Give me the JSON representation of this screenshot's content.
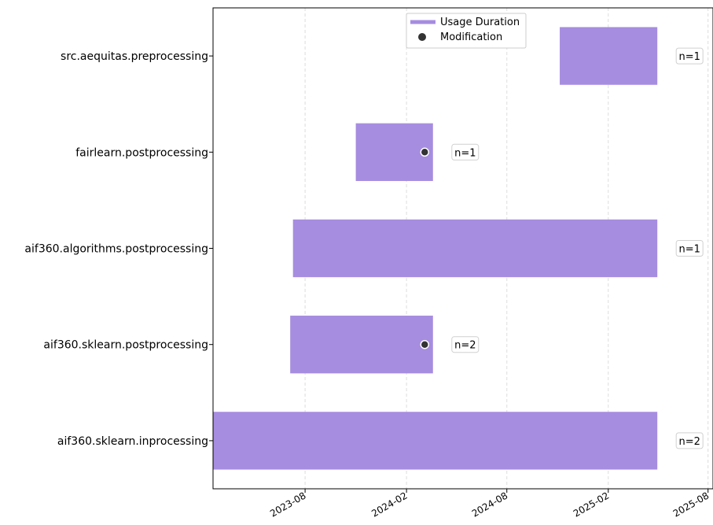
{
  "chart_data": {
    "type": "bar",
    "orientation": "horizontal-timeline",
    "x_axis": {
      "type": "date",
      "ticks": [
        "2023-08",
        "2024-02",
        "2024-08",
        "2025-02",
        "2025-08"
      ],
      "range": [
        "2023-02-15",
        "2025-08-10"
      ]
    },
    "grid": {
      "x": true,
      "y": false
    },
    "legend": {
      "placement": "top-center",
      "entries": [
        {
          "label": "Usage Duration",
          "kind": "bar"
        },
        {
          "label": "Modification",
          "kind": "marker"
        }
      ]
    },
    "categories": [
      "src.aequitas.preprocessing",
      "fairlearn.postprocessing",
      "aif360.algorithms.postprocessing",
      "aif360.sklearn.postprocessing",
      "aif360.sklearn.inprocessing"
    ],
    "series": [
      {
        "values": [
          {
            "label": "src.aequitas.preprocessing",
            "start": "2024-11-05",
            "end": "2025-05-01",
            "annotation": "n=1",
            "modifications": []
          },
          {
            "label": "fairlearn.postprocessing",
            "start": "2023-11-01",
            "end": "2024-03-20",
            "annotation": "n=1",
            "modifications": [
              "2024-03-05"
            ]
          },
          {
            "label": "aif360.algorithms.postprocessing",
            "start": "2023-07-10",
            "end": "2025-05-01",
            "annotation": "n=1",
            "modifications": []
          },
          {
            "label": "aif360.sklearn.postprocessing",
            "start": "2023-07-05",
            "end": "2024-03-20",
            "annotation": "n=2",
            "modifications": [
              "2024-03-05"
            ]
          },
          {
            "label": "aif360.sklearn.inprocessing",
            "start": "2023-02-15",
            "end": "2025-05-01",
            "annotation": "n=2",
            "modifications": []
          }
        ]
      }
    ],
    "colors": {
      "bar": "#a68de0",
      "marker": "#333333",
      "marker_edge": "#ffffff",
      "grid": "#dddddd",
      "axis": "#000000"
    }
  }
}
